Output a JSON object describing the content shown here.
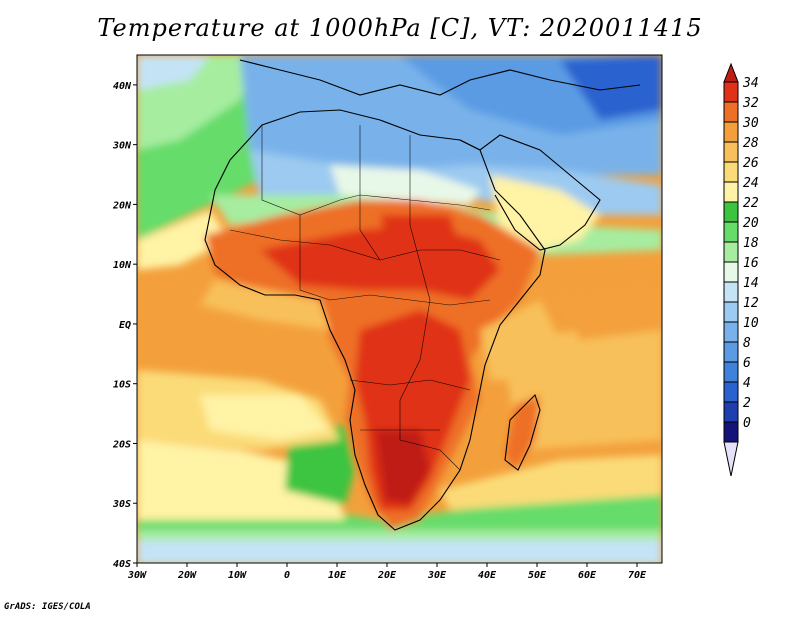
{
  "title": "Temperature at 1000hPa [C], VT: 2020011415",
  "footer": "GrADS: IGES/COLA",
  "map": {
    "lon_range": [
      -30,
      75
    ],
    "lat_range": [
      -40,
      45
    ],
    "x_ticks": [
      "30W",
      "20W",
      "10W",
      "0",
      "10E",
      "20E",
      "30E",
      "40E",
      "50E",
      "60E",
      "70E"
    ],
    "y_ticks": [
      "40N",
      "30N",
      "20N",
      "10N",
      "EQ",
      "10S",
      "20S",
      "30S",
      "40S"
    ]
  },
  "colorbar": {
    "levels": [
      "0",
      "2",
      "4",
      "6",
      "8",
      "10",
      "12",
      "14",
      "16",
      "18",
      "20",
      "22",
      "24",
      "26",
      "28",
      "30",
      "32",
      "34"
    ],
    "colors": [
      "#13137a",
      "#1f3fb0",
      "#2a62cf",
      "#3f82dc",
      "#5a9be4",
      "#79b2ea",
      "#9ccaf0",
      "#c4e3f5",
      "#e8f8e8",
      "#a6eda0",
      "#66dc6a",
      "#3cc440",
      "#fff3a5",
      "#fbdb78",
      "#f8c05a",
      "#f3a03c",
      "#ee6f26",
      "#e03219",
      "#c01e12"
    ],
    "under_color": "#e6e0f8"
  }
}
